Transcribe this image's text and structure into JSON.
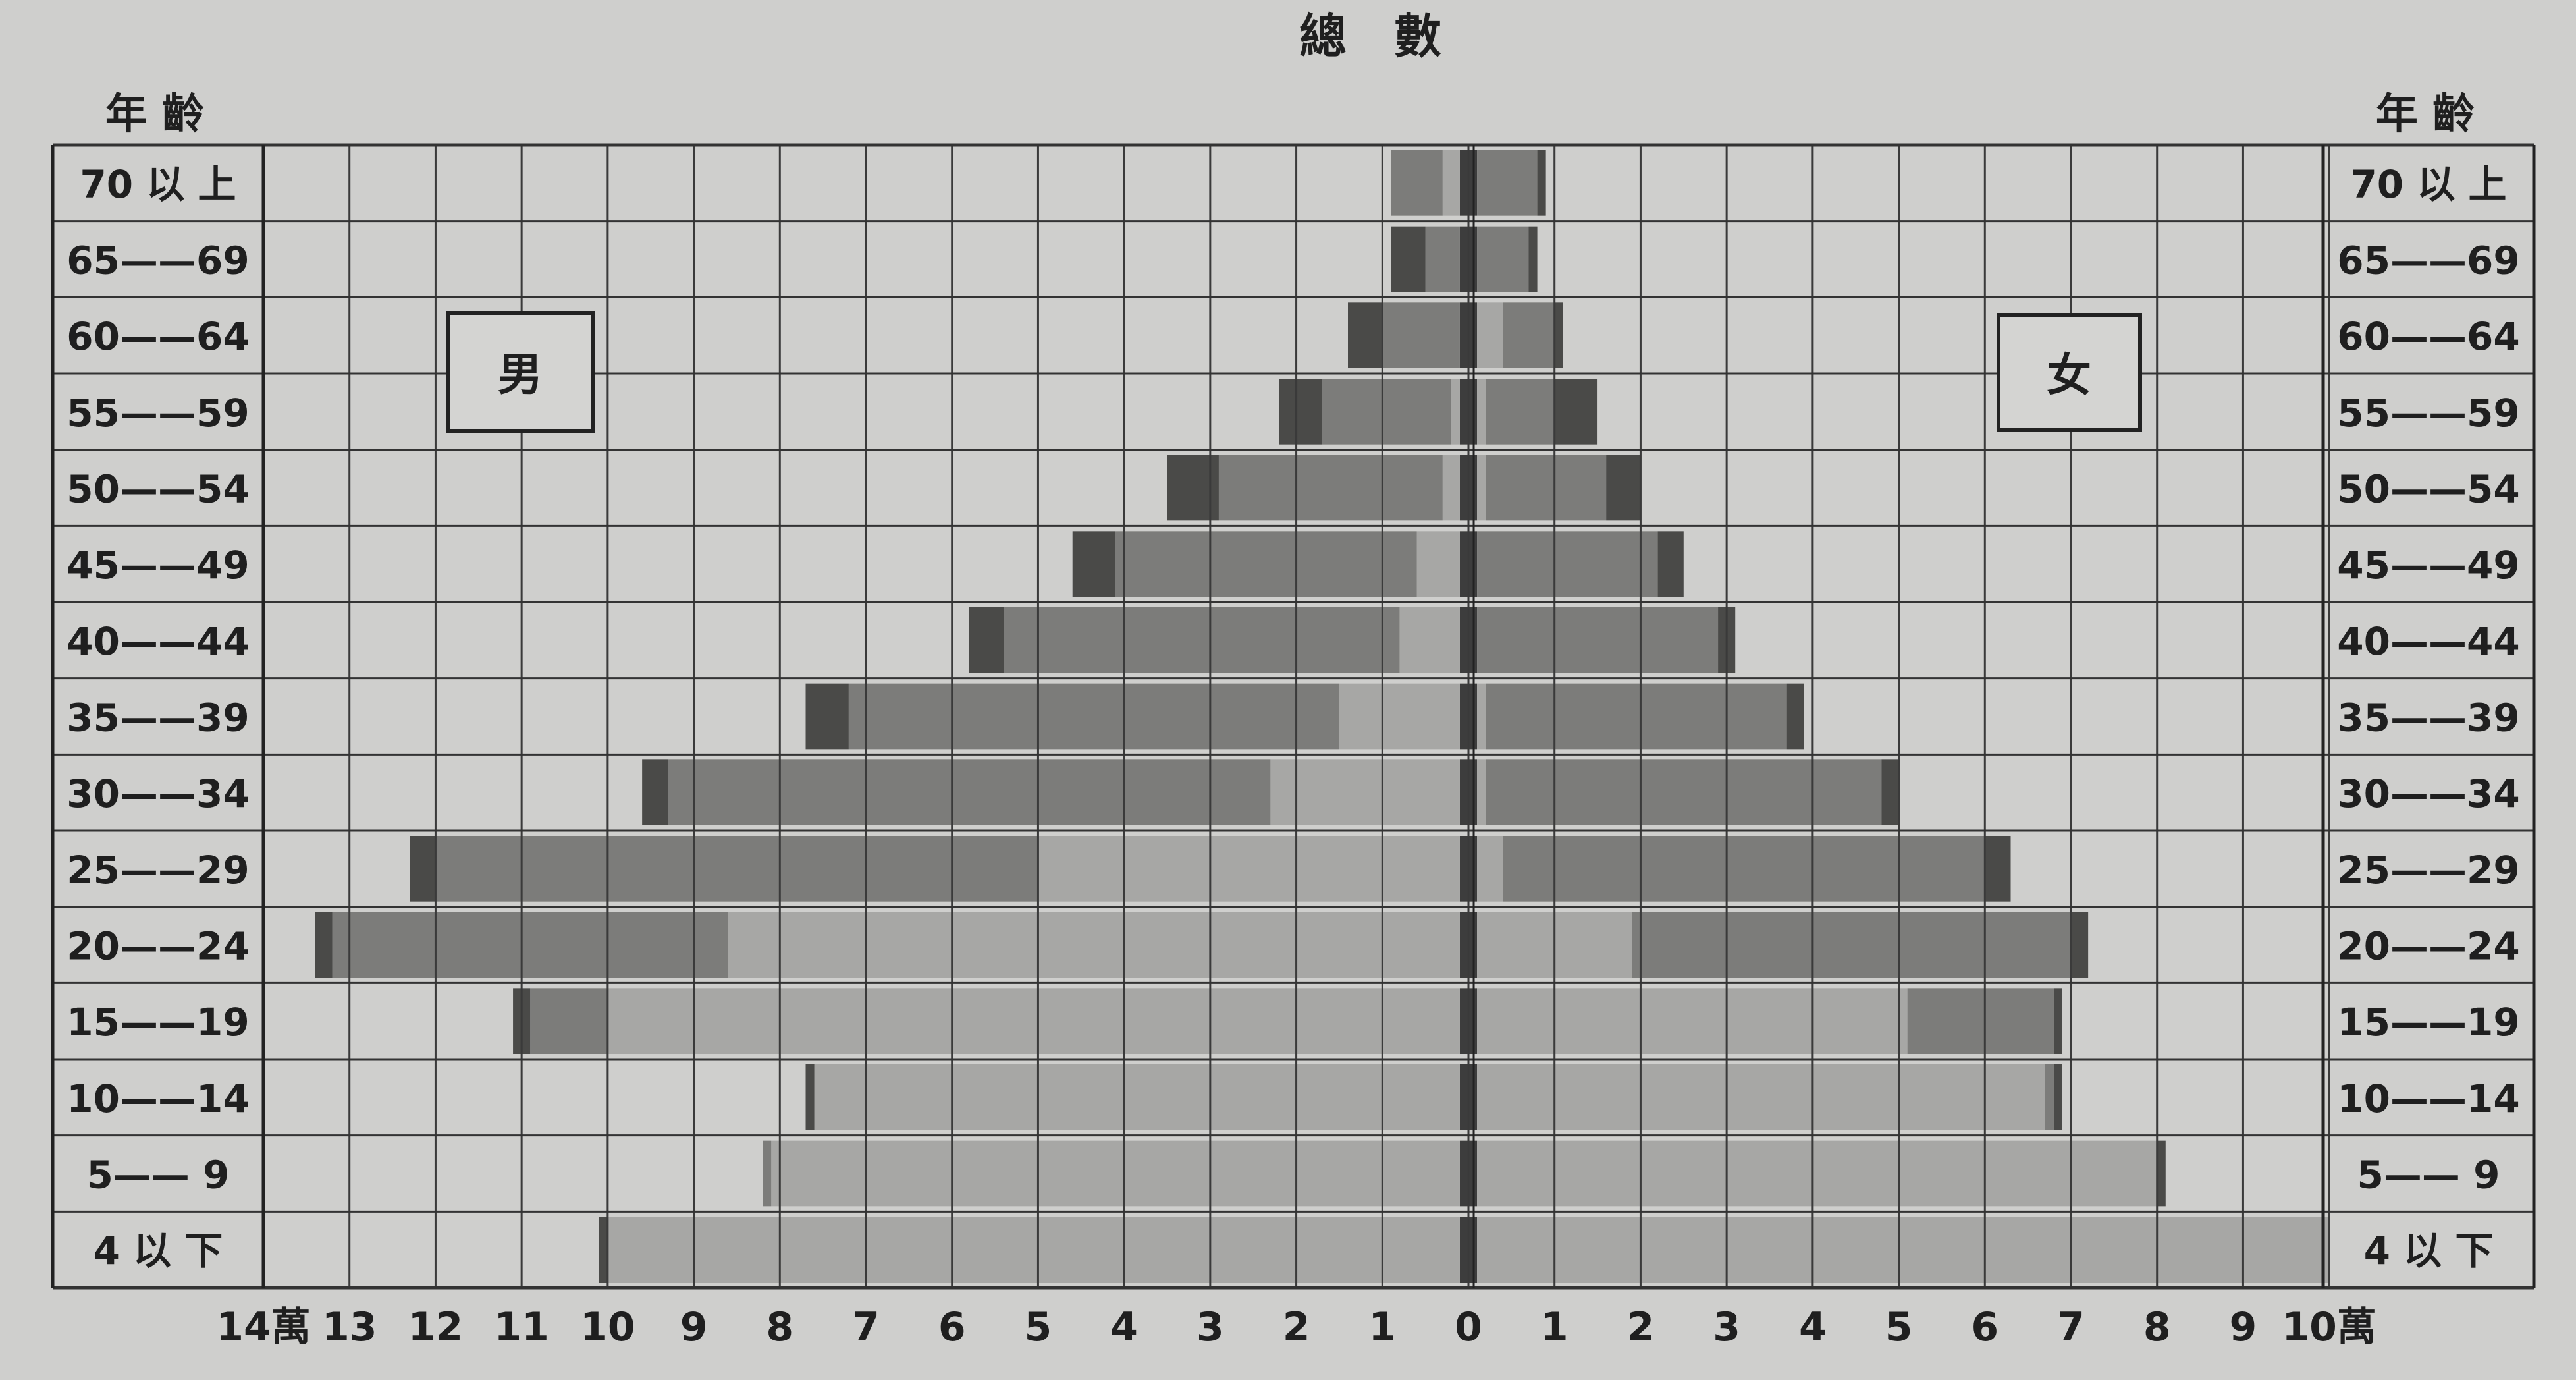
{
  "chart_data": {
    "type": "bar",
    "subtype": "population-pyramid",
    "title": "總　數",
    "age_label_left": "年 齡",
    "age_label_right": "年 齡",
    "male_label": "男",
    "female_label": "女",
    "unit": "萬",
    "age_groups": [
      "70 以 上",
      "65——69",
      "60——64",
      "55——59",
      "50——54",
      "45——49",
      "40——44",
      "35——39",
      "30——34",
      "25——29",
      "20——24",
      "15——19",
      "10——14",
      "5—— 9",
      "4 以 下"
    ],
    "x_ticks_male": [
      "14萬",
      "13",
      "12",
      "11",
      "10",
      "9",
      "8",
      "7",
      "6",
      "5",
      "4",
      "3",
      "2",
      "1",
      "0"
    ],
    "x_ticks_female": [
      "1",
      "2",
      "3",
      "4",
      "5",
      "6",
      "7",
      "8",
      "9",
      "10萬"
    ],
    "xlim_male": [
      0,
      14
    ],
    "xlim_female": [
      0,
      10
    ],
    "grid": true,
    "series": [
      {
        "name": "男",
        "segments_cumulative": [
          [
            0.1,
            0.3,
            0.9,
            0.9
          ],
          [
            0.1,
            0.1,
            0.5,
            0.9
          ],
          [
            0.1,
            0.1,
            1.0,
            1.4
          ],
          [
            0.1,
            0.2,
            1.7,
            2.2
          ],
          [
            0.1,
            0.3,
            2.9,
            3.5
          ],
          [
            0.1,
            0.6,
            4.1,
            4.6
          ],
          [
            0.1,
            0.8,
            5.4,
            5.8
          ],
          [
            0.1,
            1.5,
            7.2,
            7.7
          ],
          [
            0.1,
            2.3,
            9.3,
            9.6
          ],
          [
            0.1,
            5.0,
            12.0,
            12.3
          ],
          [
            0.1,
            8.6,
            13.2,
            13.4
          ],
          [
            0.1,
            10.0,
            10.9,
            11.1
          ],
          [
            0.1,
            7.6,
            7.6,
            7.7
          ],
          [
            0.1,
            8.1,
            8.2,
            8.2
          ],
          [
            0.1,
            10.0,
            10.0,
            10.1
          ]
        ]
      },
      {
        "name": "女",
        "segments_cumulative": [
          [
            0.1,
            0.1,
            0.8,
            0.9
          ],
          [
            0.1,
            0.1,
            0.7,
            0.8
          ],
          [
            0.1,
            0.4,
            1.0,
            1.1
          ],
          [
            0.1,
            0.2,
            1.0,
            1.5
          ],
          [
            0.1,
            0.2,
            1.6,
            2.0
          ],
          [
            0.1,
            0.1,
            2.2,
            2.5
          ],
          [
            0.1,
            0.1,
            2.9,
            3.1
          ],
          [
            0.1,
            0.2,
            3.7,
            3.9
          ],
          [
            0.1,
            0.2,
            4.8,
            5.0
          ],
          [
            0.1,
            0.4,
            6.0,
            6.3
          ],
          [
            0.1,
            1.9,
            7.0,
            7.2
          ],
          [
            0.1,
            5.1,
            6.8,
            6.9
          ],
          [
            0.1,
            6.7,
            6.8,
            6.9
          ],
          [
            0.1,
            8.0,
            8.0,
            8.1
          ],
          [
            0.1,
            10.0,
            10.0,
            10.0
          ]
        ]
      }
    ],
    "segment_colors": [
      "#3d3d3d",
      "#a7a7a5",
      "#7c7c7a",
      "#4a4a48"
    ]
  }
}
